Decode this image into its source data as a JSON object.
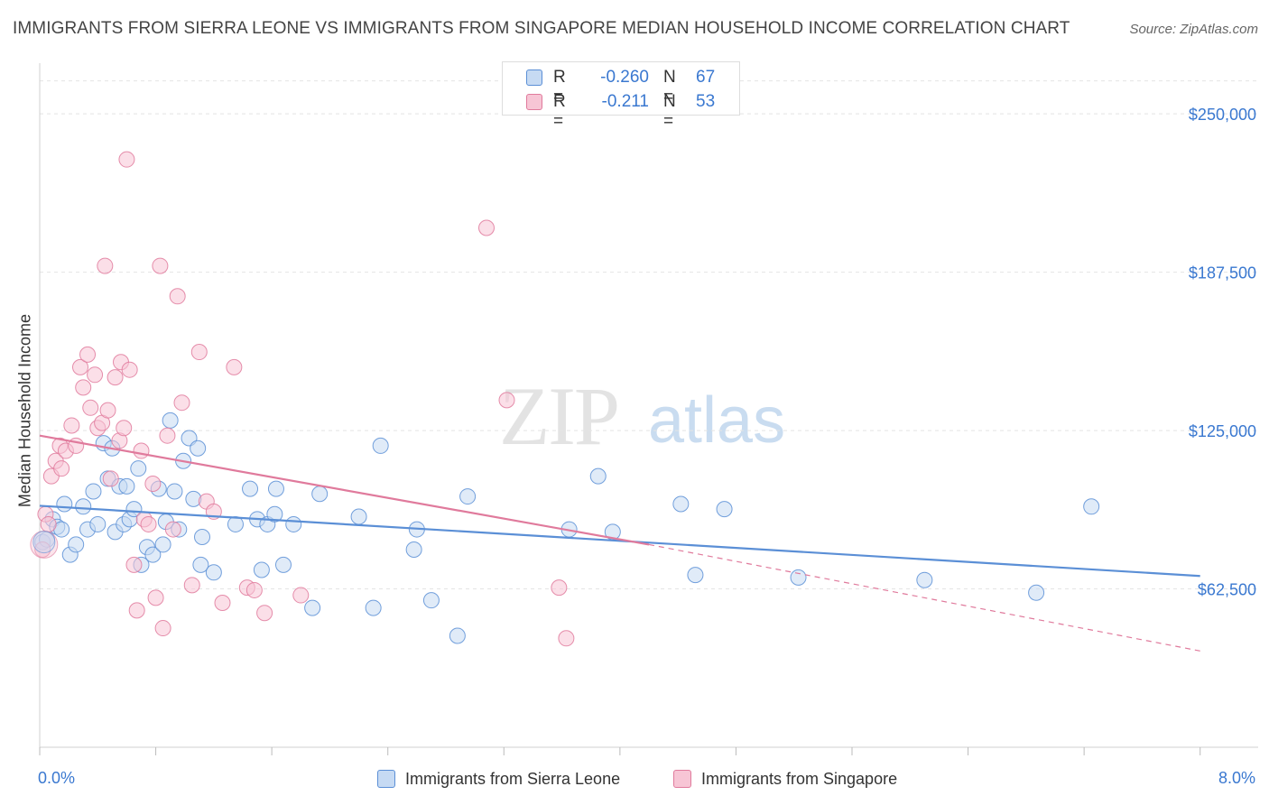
{
  "chart_data": {
    "type": "scatter",
    "title": "IMMIGRANTS FROM SIERRA LEONE VS IMMIGRANTS FROM SINGAPORE MEDIAN HOUSEHOLD INCOME CORRELATION CHART",
    "source": "Source: ZipAtlas.com",
    "xlabel": "",
    "ylabel": "Median Household Income",
    "xlim": [
      0,
      8.4
    ],
    "ylim": [
      0,
      270000
    ],
    "x_tick_labels": [
      "0.0%",
      "8.0%"
    ],
    "y_ticks": [
      62500,
      125000,
      187500,
      250000
    ],
    "y_tick_labels": [
      "$62,500",
      "$125,000",
      "$187,500",
      "$250,000"
    ],
    "grid": true,
    "watermark": {
      "zip": "ZIP",
      "atlas": "atlas"
    },
    "legend": {
      "r_label": "R =",
      "n_label": "N =",
      "entries": [
        {
          "r": "-0.260",
          "n": "67"
        },
        {
          "r": "-0.211",
          "n": "53"
        }
      ]
    },
    "series": [
      {
        "name": "Immigrants from Sierra Leone",
        "color": "#5b8fd6",
        "fill": "#c6daf3",
        "trend": {
          "x0": 0.0,
          "y0": 95300,
          "x1": 8.0,
          "y1": 67600
        },
        "points": [
          [
            0.02,
            81000
          ],
          [
            0.05,
            82000
          ],
          [
            0.09,
            90000
          ],
          [
            0.12,
            87000
          ],
          [
            0.15,
            86000
          ],
          [
            0.17,
            96000
          ],
          [
            0.21,
            76000
          ],
          [
            0.25,
            80000
          ],
          [
            0.3,
            95000
          ],
          [
            0.33,
            86000
          ],
          [
            0.37,
            101000
          ],
          [
            0.4,
            88000
          ],
          [
            0.44,
            120000
          ],
          [
            0.47,
            106000
          ],
          [
            0.5,
            118000
          ],
          [
            0.52,
            85000
          ],
          [
            0.55,
            103000
          ],
          [
            0.58,
            88000
          ],
          [
            0.6,
            103000
          ],
          [
            0.62,
            90000
          ],
          [
            0.65,
            94000
          ],
          [
            0.68,
            110000
          ],
          [
            0.7,
            72000
          ],
          [
            0.74,
            79000
          ],
          [
            0.78,
            76000
          ],
          [
            0.82,
            102000
          ],
          [
            0.85,
            80000
          ],
          [
            0.87,
            89000
          ],
          [
            0.9,
            129000
          ],
          [
            0.93,
            101000
          ],
          [
            0.96,
            86000
          ],
          [
            0.99,
            113000
          ],
          [
            1.03,
            122000
          ],
          [
            1.06,
            98000
          ],
          [
            1.09,
            118000
          ],
          [
            1.11,
            72000
          ],
          [
            1.12,
            83000
          ],
          [
            1.2,
            69000
          ],
          [
            1.35,
            88000
          ],
          [
            1.45,
            102000
          ],
          [
            1.5,
            90000
          ],
          [
            1.53,
            70000
          ],
          [
            1.57,
            88000
          ],
          [
            1.62,
            92000
          ],
          [
            1.63,
            102000
          ],
          [
            1.68,
            72000
          ],
          [
            1.75,
            88000
          ],
          [
            1.88,
            55000
          ],
          [
            1.93,
            100000
          ],
          [
            2.2,
            91000
          ],
          [
            2.3,
            55000
          ],
          [
            2.35,
            119000
          ],
          [
            2.58,
            78000
          ],
          [
            2.6,
            86000
          ],
          [
            2.7,
            58000
          ],
          [
            2.88,
            44000
          ],
          [
            2.95,
            99000
          ],
          [
            3.65,
            86000
          ],
          [
            3.85,
            107000
          ],
          [
            3.95,
            85000
          ],
          [
            4.42,
            96000
          ],
          [
            4.52,
            68000
          ],
          [
            4.72,
            94000
          ],
          [
            5.23,
            67000
          ],
          [
            6.1,
            66000
          ],
          [
            6.87,
            61000
          ],
          [
            7.25,
            95000
          ]
        ]
      },
      {
        "name": "Immigrants from Singapore",
        "color": "#e07a9c",
        "fill": "#f7c5d5",
        "trend": {
          "x0": 0.0,
          "y0": 123000,
          "x1": 4.2,
          "y1": 80000
        },
        "trend_extension": {
          "x0": 4.2,
          "y0": 80000,
          "x1": 8.0,
          "y1": 38000
        },
        "points": [
          [
            0.02,
            78000
          ],
          [
            0.04,
            92000
          ],
          [
            0.06,
            88000
          ],
          [
            0.08,
            107000
          ],
          [
            0.11,
            113000
          ],
          [
            0.14,
            119000
          ],
          [
            0.15,
            110000
          ],
          [
            0.18,
            117000
          ],
          [
            0.22,
            127000
          ],
          [
            0.25,
            119000
          ],
          [
            0.28,
            150000
          ],
          [
            0.3,
            142000
          ],
          [
            0.33,
            155000
          ],
          [
            0.35,
            134000
          ],
          [
            0.38,
            147000
          ],
          [
            0.4,
            126000
          ],
          [
            0.43,
            128000
          ],
          [
            0.45,
            190000
          ],
          [
            0.47,
            133000
          ],
          [
            0.49,
            106000
          ],
          [
            0.52,
            146000
          ],
          [
            0.55,
            121000
          ],
          [
            0.56,
            152000
          ],
          [
            0.58,
            126000
          ],
          [
            0.6,
            232000
          ],
          [
            0.62,
            149000
          ],
          [
            0.65,
            72000
          ],
          [
            0.67,
            54000
          ],
          [
            0.7,
            117000
          ],
          [
            0.72,
            90000
          ],
          [
            0.75,
            88000
          ],
          [
            0.78,
            104000
          ],
          [
            0.8,
            59000
          ],
          [
            0.83,
            190000
          ],
          [
            0.85,
            47000
          ],
          [
            0.88,
            123000
          ],
          [
            0.92,
            86000
          ],
          [
            0.95,
            178000
          ],
          [
            0.98,
            136000
          ],
          [
            1.05,
            64000
          ],
          [
            1.1,
            156000
          ],
          [
            1.15,
            97000
          ],
          [
            1.2,
            93000
          ],
          [
            1.26,
            57000
          ],
          [
            1.34,
            150000
          ],
          [
            1.43,
            63000
          ],
          [
            1.48,
            62000
          ],
          [
            1.55,
            53000
          ],
          [
            1.8,
            60000
          ],
          [
            3.08,
            205000
          ],
          [
            3.22,
            137000
          ],
          [
            3.58,
            63000
          ],
          [
            3.63,
            43000
          ]
        ]
      }
    ]
  }
}
